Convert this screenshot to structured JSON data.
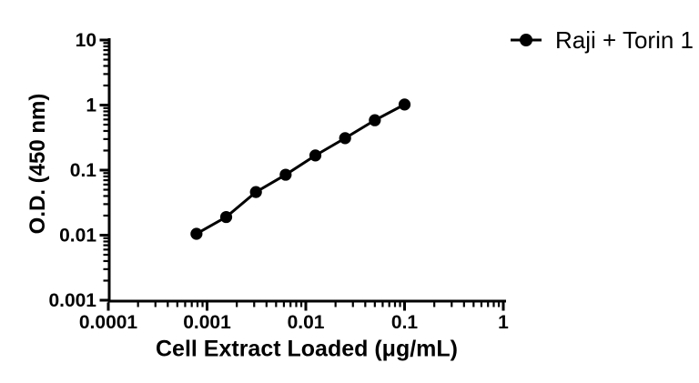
{
  "chart_data": {
    "type": "line",
    "title": "",
    "xlabel": "Cell Extract Loaded (μg/mL)",
    "ylabel": "O.D. (450 nm)",
    "x_scale": "log",
    "y_scale": "log",
    "xlim": [
      0.0001,
      1
    ],
    "ylim": [
      0.001,
      10
    ],
    "x_ticks": {
      "values": [
        0.0001,
        0.001,
        0.01,
        0.1,
        1
      ],
      "labels": [
        "0.0001",
        "0.001",
        "0.01",
        "0.1",
        "1"
      ]
    },
    "y_ticks": {
      "values": [
        0.001,
        0.01,
        0.1,
        1,
        10
      ],
      "labels": [
        "0.001",
        "0.01",
        "0.1",
        "1",
        "10"
      ]
    },
    "minor_ticks": "2-9 per decade, outward",
    "grid": false,
    "legend_position": "top-right",
    "series": [
      {
        "name": "Raji + Torin 1",
        "color": "#000000",
        "marker": "filled-circle",
        "x": [
          0.00078125,
          0.0015625,
          0.003125,
          0.00625,
          0.0125,
          0.025,
          0.05,
          0.1
        ],
        "y": [
          0.0105,
          0.019,
          0.046,
          0.085,
          0.168,
          0.31,
          0.585,
          1.02
        ]
      }
    ]
  },
  "colors": {
    "background": "#ffffff",
    "axis": "#000000",
    "text": "#000000",
    "series": "#000000"
  }
}
